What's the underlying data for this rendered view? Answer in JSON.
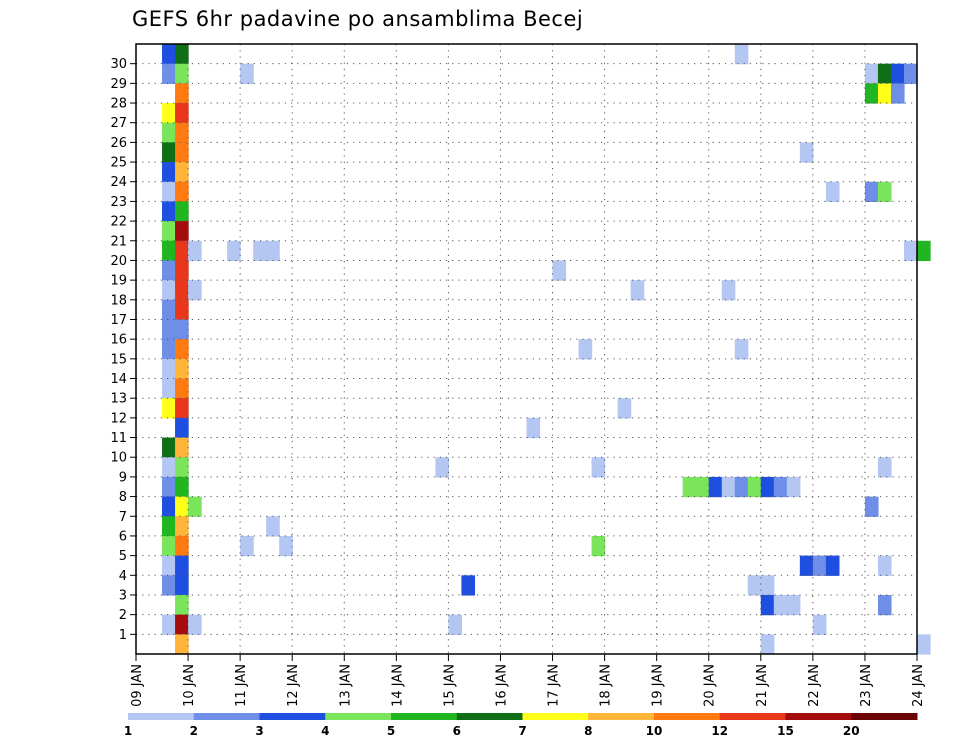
{
  "chart_data": {
    "type": "heatmap",
    "title": "GEFS 6hr padavine po ansamblima Becej",
    "x_tick_labels": [
      "09 JAN",
      "10 JAN",
      "11 JAN",
      "12 JAN",
      "13 JAN",
      "14 JAN",
      "15 JAN",
      "16 JAN",
      "17 JAN",
      "18 JAN",
      "19 JAN",
      "20 JAN",
      "21 JAN",
      "22 JAN",
      "23 JAN",
      "24 JAN"
    ],
    "y_tick_labels": [
      "1",
      "2",
      "3",
      "4",
      "5",
      "6",
      "7",
      "8",
      "9",
      "10",
      "11",
      "12",
      "13",
      "14",
      "15",
      "16",
      "17",
      "18",
      "19",
      "20",
      "21",
      "22",
      "23",
      "24",
      "25",
      "26",
      "27",
      "28",
      "29",
      "30"
    ],
    "grid": true,
    "legend_position": "bottom",
    "colorbar": {
      "labels": [
        "1",
        "2",
        "3",
        "4",
        "5",
        "6",
        "7",
        "8",
        "10",
        "12",
        "15",
        "20"
      ],
      "colors": [
        "#b4c7f3",
        "#6e8ee8",
        "#1f4fe0",
        "#7ae55a",
        "#22b522",
        "#0f6e16",
        "#ffff1a",
        "#ffb43a",
        "#ff7a10",
        "#e8371a",
        "#a30d0d",
        "#6b0505"
      ]
    },
    "cells_description": "each cell: [member, day offset from 09 JAN, bin index into colorbar]",
    "cells": [
      [
        30,
        0.5,
        2
      ],
      [
        30,
        0.75,
        5
      ],
      [
        30,
        11.5,
        0
      ],
      [
        29,
        0.5,
        1
      ],
      [
        29,
        0.75,
        3
      ],
      [
        29,
        2,
        0
      ],
      [
        29,
        14,
        0
      ],
      [
        29,
        14.25,
        5
      ],
      [
        29,
        14.5,
        2
      ],
      [
        29,
        14.75,
        1
      ],
      [
        28,
        0.75,
        8
      ],
      [
        28,
        14,
        4
      ],
      [
        28,
        14.25,
        6
      ],
      [
        28,
        14.5,
        1
      ],
      [
        27,
        0.5,
        6
      ],
      [
        27,
        0.75,
        9
      ],
      [
        26,
        0.5,
        3
      ],
      [
        26,
        0.75,
        8
      ],
      [
        25,
        0.5,
        5
      ],
      [
        25,
        0.75,
        8
      ],
      [
        25,
        12.75,
        0
      ],
      [
        24,
        0.5,
        2
      ],
      [
        24,
        0.75,
        7
      ],
      [
        23,
        0.5,
        0
      ],
      [
        23,
        0.75,
        8
      ],
      [
        23,
        13.25,
        0
      ],
      [
        23,
        14,
        1
      ],
      [
        23,
        14.25,
        3
      ],
      [
        22,
        0.5,
        2
      ],
      [
        22,
        0.75,
        4
      ],
      [
        21,
        0.5,
        3
      ],
      [
        21,
        0.75,
        10
      ],
      [
        20,
        0.5,
        4
      ],
      [
        20,
        0.75,
        9
      ],
      [
        20,
        1,
        0
      ],
      [
        20,
        1.75,
        0
      ],
      [
        20,
        2.25,
        0
      ],
      [
        20,
        2.5,
        0
      ],
      [
        20,
        14.75,
        0
      ],
      [
        20,
        15,
        4
      ],
      [
        19,
        0.5,
        1
      ],
      [
        19,
        0.75,
        9
      ],
      [
        19,
        8,
        0
      ],
      [
        18,
        0.5,
        0
      ],
      [
        18,
        0.75,
        9
      ],
      [
        18,
        1,
        0
      ],
      [
        18,
        9.5,
        0
      ],
      [
        18,
        11.25,
        0
      ],
      [
        17,
        0.5,
        1
      ],
      [
        17,
        0.75,
        9
      ],
      [
        16,
        0.5,
        1
      ],
      [
        16,
        0.75,
        1
      ],
      [
        15,
        0.5,
        1
      ],
      [
        15,
        0.75,
        8
      ],
      [
        15,
        8.5,
        0
      ],
      [
        15,
        11.5,
        0
      ],
      [
        14,
        0.5,
        0
      ],
      [
        14,
        0.75,
        7
      ],
      [
        13,
        0.5,
        0
      ],
      [
        13,
        0.75,
        8
      ],
      [
        12,
        0.5,
        6
      ],
      [
        12,
        0.75,
        9
      ],
      [
        12,
        9.25,
        0
      ],
      [
        11,
        0.75,
        2
      ],
      [
        11,
        7.5,
        0
      ],
      [
        10,
        0.5,
        5
      ],
      [
        10,
        0.75,
        7
      ],
      [
        9,
        0.5,
        0
      ],
      [
        9,
        0.75,
        3
      ],
      [
        9,
        5.75,
        0
      ],
      [
        9,
        8.75,
        0
      ],
      [
        9,
        14.25,
        0
      ],
      [
        8,
        0.5,
        1
      ],
      [
        8,
        0.75,
        4
      ],
      [
        8,
        10.5,
        3
      ],
      [
        8,
        10.75,
        3
      ],
      [
        8,
        11,
        2
      ],
      [
        8,
        11.25,
        0
      ],
      [
        8,
        11.5,
        1
      ],
      [
        8,
        11.75,
        3
      ],
      [
        8,
        12,
        2
      ],
      [
        8,
        12.25,
        1
      ],
      [
        8,
        12.5,
        0
      ],
      [
        7,
        0.5,
        2
      ],
      [
        7,
        0.75,
        6
      ],
      [
        7,
        1,
        3
      ],
      [
        7,
        14,
        1
      ],
      [
        6,
        0.5,
        4
      ],
      [
        6,
        0.75,
        7
      ],
      [
        6,
        2.5,
        0
      ],
      [
        5,
        0.5,
        3
      ],
      [
        5,
        0.75,
        8
      ],
      [
        5,
        2,
        0
      ],
      [
        5,
        2.75,
        0
      ],
      [
        5,
        8.75,
        3
      ],
      [
        4,
        0.5,
        0
      ],
      [
        4,
        0.75,
        2
      ],
      [
        4,
        12.75,
        2
      ],
      [
        4,
        13,
        1
      ],
      [
        4,
        13.25,
        2
      ],
      [
        4,
        14.25,
        0
      ],
      [
        3,
        0.5,
        1
      ],
      [
        3,
        0.75,
        2
      ],
      [
        3,
        6.25,
        2
      ],
      [
        3,
        11.75,
        0
      ],
      [
        3,
        12,
        0
      ],
      [
        2,
        0.75,
        3
      ],
      [
        2,
        12,
        2
      ],
      [
        2,
        12.25,
        0
      ],
      [
        2,
        12.5,
        0
      ],
      [
        2,
        14.25,
        1
      ],
      [
        1,
        0.5,
        0
      ],
      [
        1,
        0.75,
        10
      ],
      [
        1,
        1,
        0
      ],
      [
        1,
        6,
        0
      ],
      [
        1,
        13,
        0
      ],
      [
        0,
        0.75,
        7
      ],
      [
        0,
        12,
        0
      ],
      [
        0,
        15,
        0
      ]
    ]
  }
}
